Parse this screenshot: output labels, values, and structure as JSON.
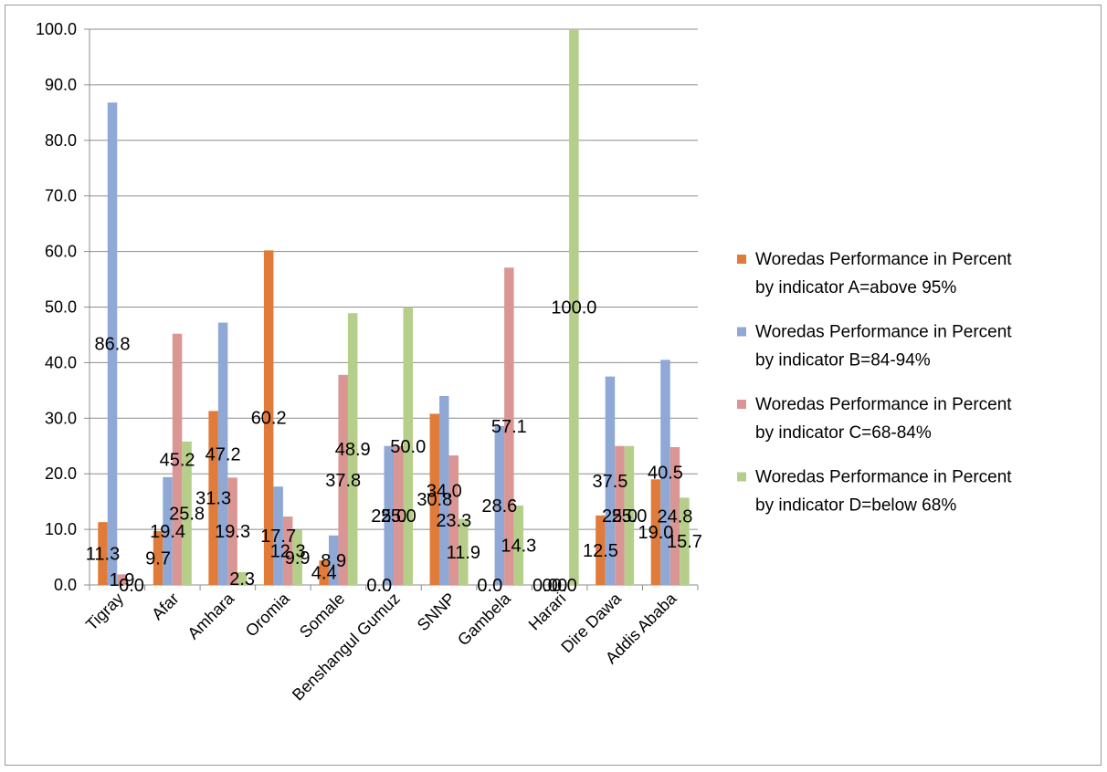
{
  "chart_data": {
    "type": "bar",
    "title": "",
    "xlabel": "",
    "ylabel": "",
    "ylim": [
      0,
      100
    ],
    "ytick_step": 10,
    "ytick_labels": [
      "0.0",
      "10.0",
      "20.0",
      "30.0",
      "40.0",
      "50.0",
      "60.0",
      "70.0",
      "80.0",
      "90.0",
      "100.0"
    ],
    "grid": true,
    "legend_position": "right",
    "categories": [
      "Tigray",
      "Afar",
      "Amhara",
      "Oromia",
      "Somale",
      "Benshangul Gumuz",
      "SNNP",
      "Gambela",
      "Harari",
      "Dire Dawa",
      "Addis Ababa"
    ],
    "series": [
      {
        "name": "Woredas Performance in Percent by indicator A=above 95%",
        "legend_lines": [
          "Woredas Performance in Percent",
          "by indicator A=above 95%"
        ],
        "color": "#E07B39",
        "values": [
          11.3,
          9.7,
          31.3,
          60.2,
          4.4,
          0.0,
          30.8,
          0.0,
          0.0,
          12.5,
          19.0
        ],
        "labels": [
          "11.3",
          "9.7",
          "31.3",
          "60.2",
          "4.4",
          "0.0",
          "30.8",
          "0.0",
          "0.0",
          "12.5",
          "19.0"
        ]
      },
      {
        "name": "Woredas Performance in Percent by indicator B=84-94%",
        "legend_lines": [
          "Woredas Performance in Percent",
          "by indicator B=84-94%"
        ],
        "color": "#8FA8D6",
        "values": [
          86.8,
          19.4,
          47.2,
          17.7,
          8.9,
          25.0,
          34.0,
          28.6,
          0.0,
          37.5,
          40.5
        ],
        "labels": [
          "86.8",
          "19.4",
          "47.2",
          "17.7",
          "8.9",
          "25.0",
          "34.0",
          "28.6",
          "0.0",
          "37.5",
          "40.5"
        ]
      },
      {
        "name": "Woredas Performance in Percent by indicator C=68-84%",
        "legend_lines": [
          "Woredas Performance in Percent",
          "by indicator C=68-84%"
        ],
        "color": "#D99694",
        "values": [
          1.9,
          45.2,
          19.3,
          12.3,
          37.8,
          25.0,
          23.3,
          57.1,
          0.0,
          25.0,
          24.8
        ],
        "labels": [
          "1.9",
          "45.2",
          "19.3",
          "12.3",
          "37.8",
          "25.0",
          "23.3",
          "57.1",
          "0.0",
          "25.0",
          "24.8"
        ]
      },
      {
        "name": "Woredas Performance in Percent by indicator D=below 68%",
        "legend_lines": [
          "Woredas Performance in Percent",
          "by indicator D=below 68%"
        ],
        "color": "#B5CF8A",
        "values": [
          0.0,
          25.8,
          2.3,
          9.9,
          48.9,
          50.0,
          11.9,
          14.3,
          100.0,
          25.0,
          15.7
        ],
        "labels": [
          "0.0",
          "25.8",
          "2.3",
          "9.9",
          "48.9",
          "50.0",
          "11.9",
          "14.3",
          "100.0",
          "25.0",
          "15.7"
        ]
      }
    ]
  }
}
